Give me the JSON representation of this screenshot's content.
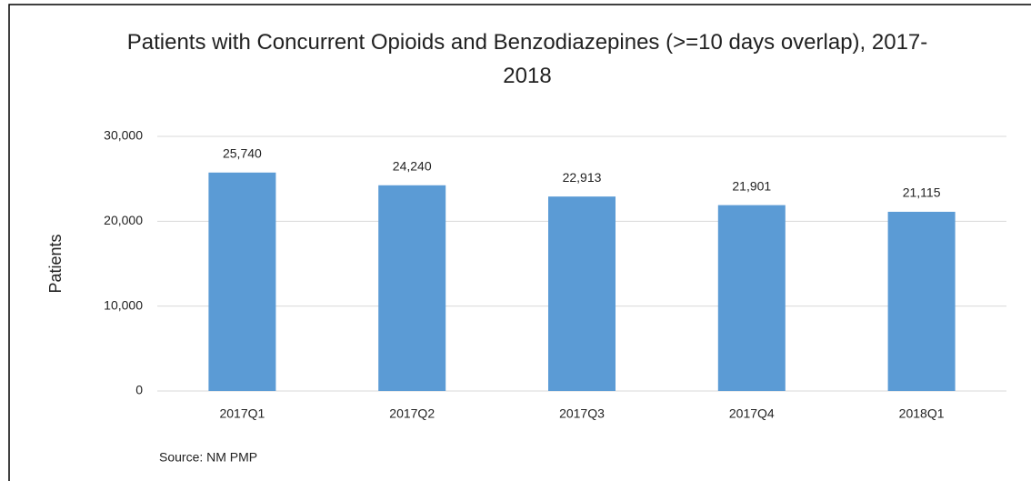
{
  "chart_data": {
    "type": "bar",
    "title": "Patients with Concurrent Opioids and Benzodiazepines (>=10 days overlap), 2017-2018",
    "ylabel": "Patients",
    "annotation": "Source:  NM PMP",
    "categories": [
      "2017Q1",
      "2017Q2",
      "2017Q3",
      "2017Q4",
      "2018Q1"
    ],
    "values": [
      25740,
      24240,
      22913,
      21901,
      21115
    ],
    "value_labels": [
      "25,740",
      "24,240",
      "22,913",
      "21,901",
      "21,115"
    ],
    "color": "#5b9bd5",
    "ylim": [
      0,
      30000
    ],
    "yticks": [
      0,
      {
        "value": 10000,
        "label": "10,000"
      },
      {
        "value": 20000,
        "label": "20,000"
      },
      {
        "value": 30000,
        "label": "30,000"
      }
    ],
    "grid": true
  }
}
